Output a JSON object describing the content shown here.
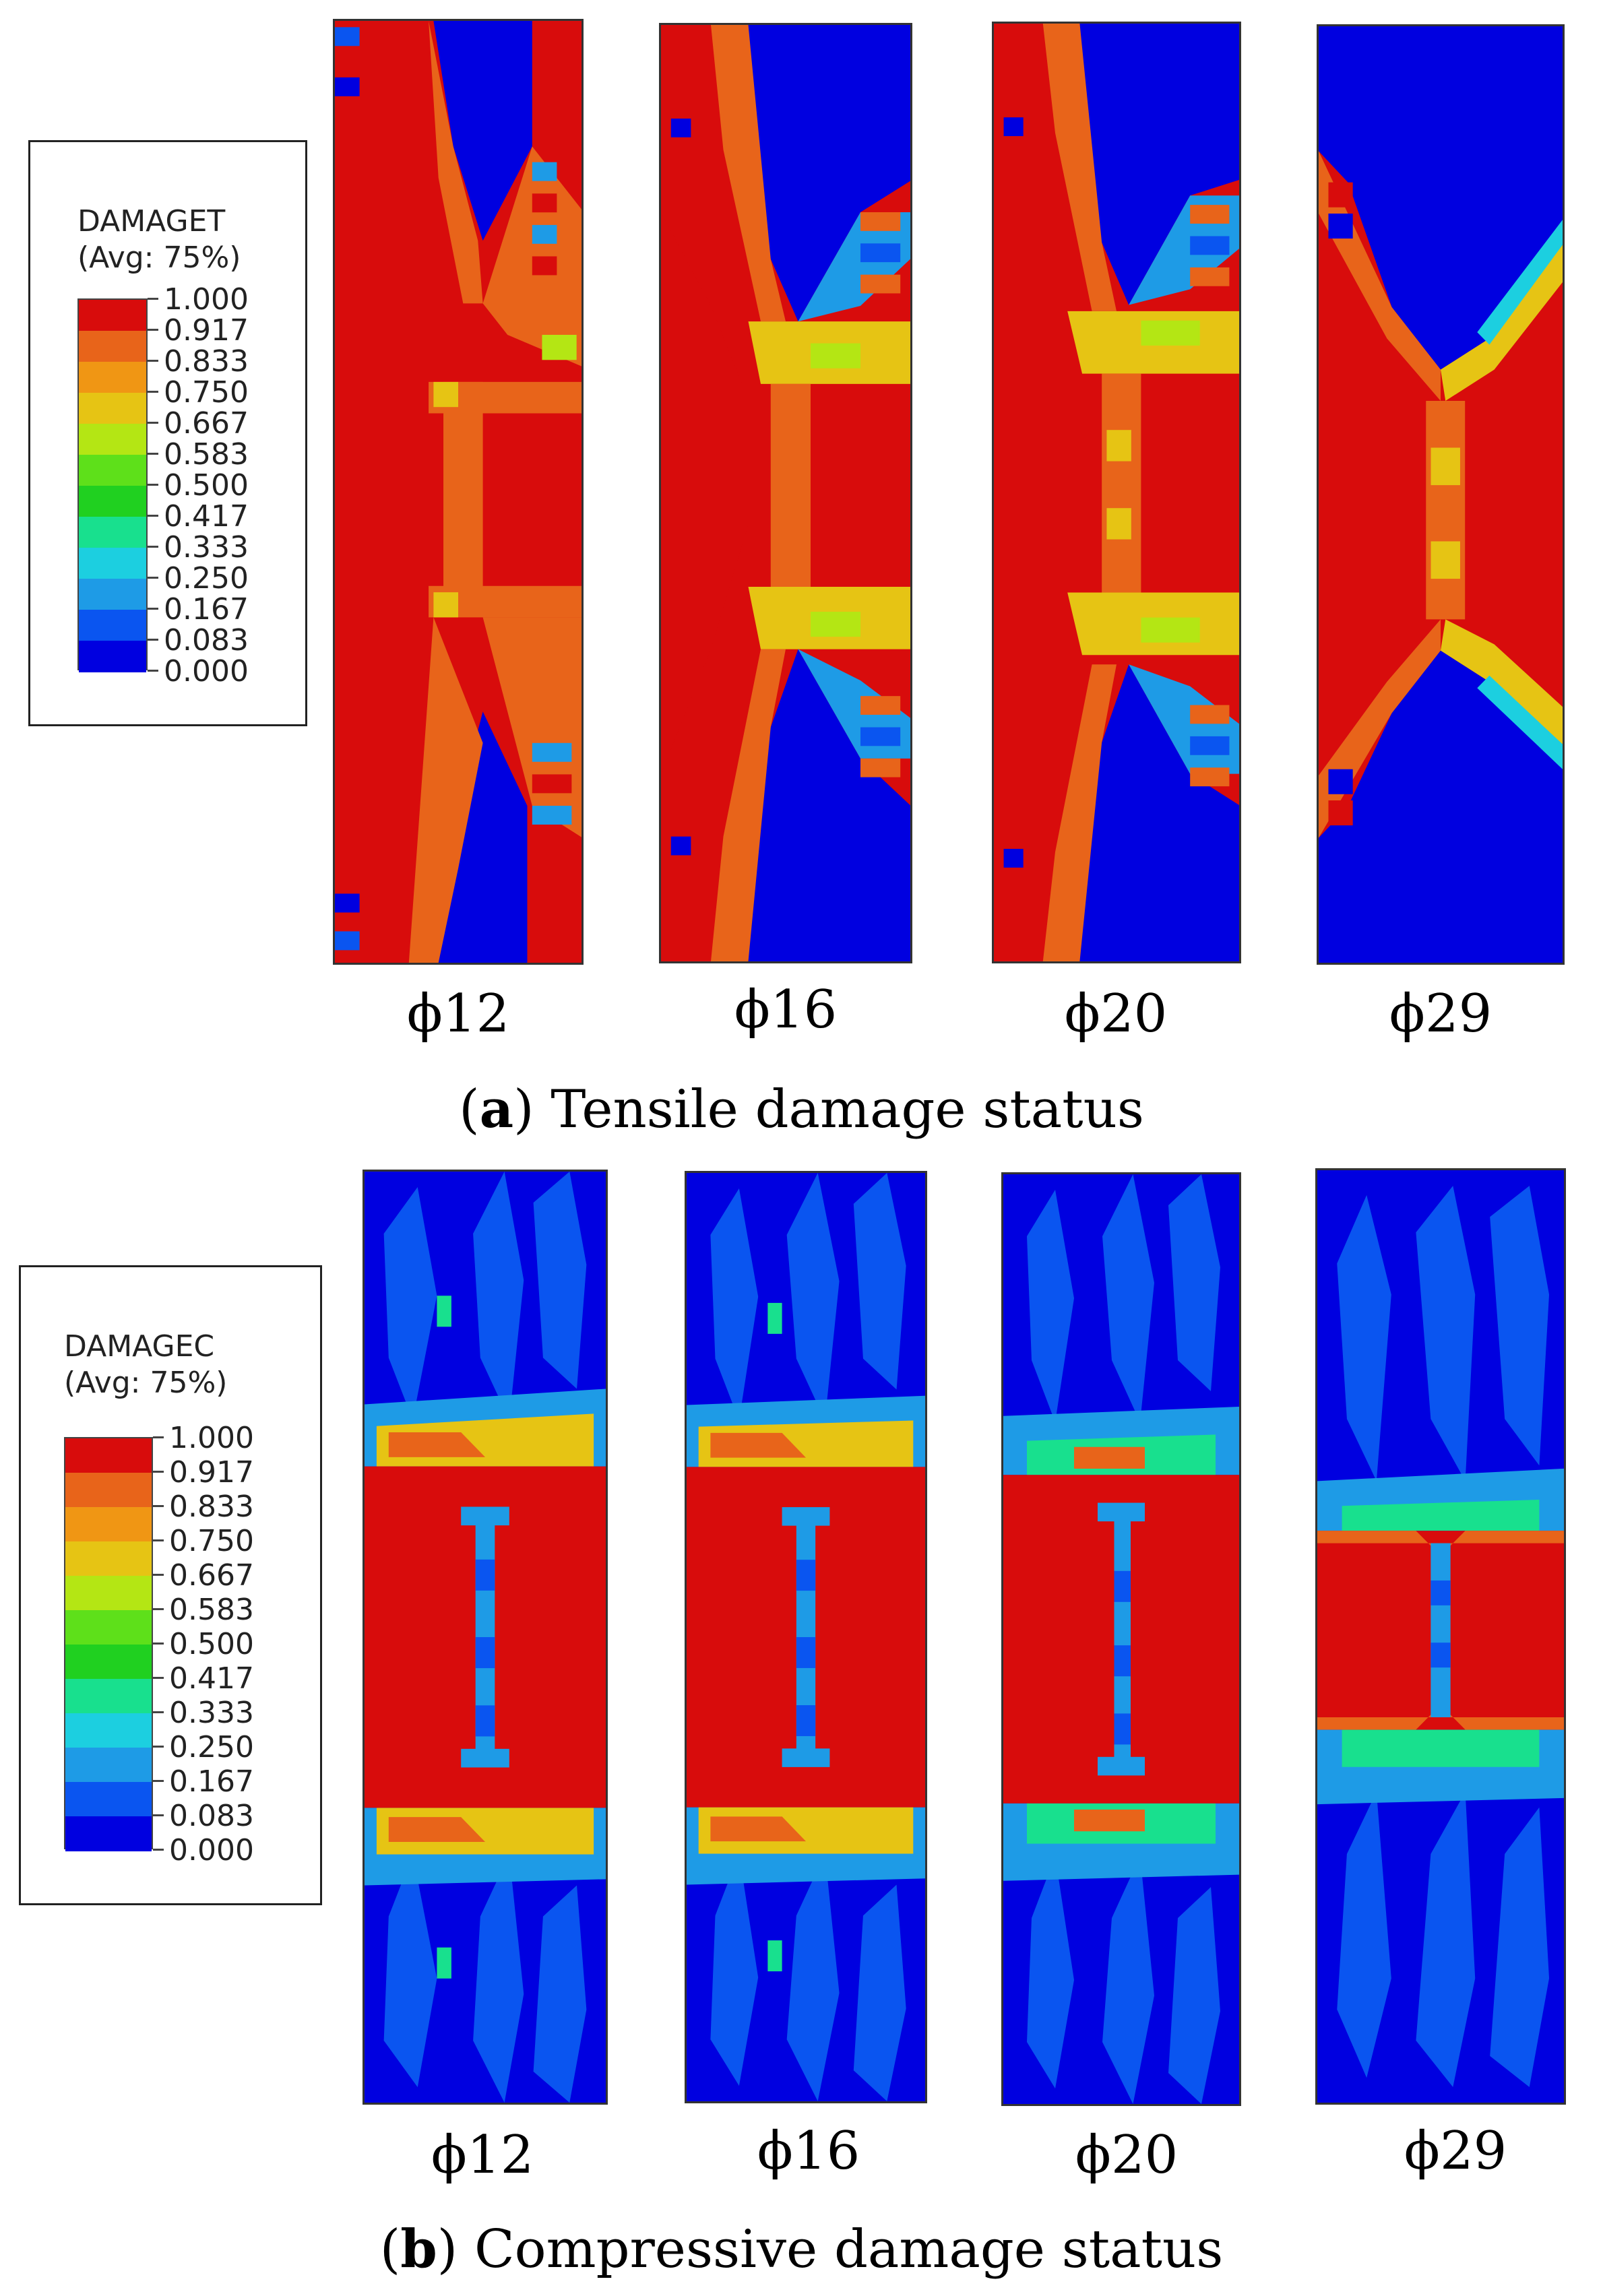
{
  "scale_colors": [
    "#0000e0",
    "#0a55f0",
    "#1e9be6",
    "#1ccfe0",
    "#18e08e",
    "#20d020",
    "#5ee01a",
    "#b4e614",
    "#e6c414",
    "#f09614",
    "#e8641a",
    "#d80c0c"
  ],
  "scale_values": [
    "1.000",
    "0.917",
    "0.833",
    "0.750",
    "0.667",
    "0.583",
    "0.500",
    "0.417",
    "0.333",
    "0.250",
    "0.167",
    "0.083",
    "0.000"
  ],
  "panel_a": {
    "legend_title_1": "DAMAGET",
    "legend_title_2": "(Avg: 75%)",
    "caption_letter": "a",
    "caption_text": "Tensile damage status",
    "labels": [
      "ϕ12",
      "ϕ16",
      "ϕ20",
      "ϕ29"
    ]
  },
  "panel_b": {
    "legend_title_1": "DAMAGEC",
    "legend_title_2": "(Avg: 75%)",
    "caption_letter": "b",
    "caption_text": "Compressive damage status",
    "labels": [
      "ϕ12",
      "ϕ16",
      "ϕ20",
      "ϕ29"
    ]
  }
}
